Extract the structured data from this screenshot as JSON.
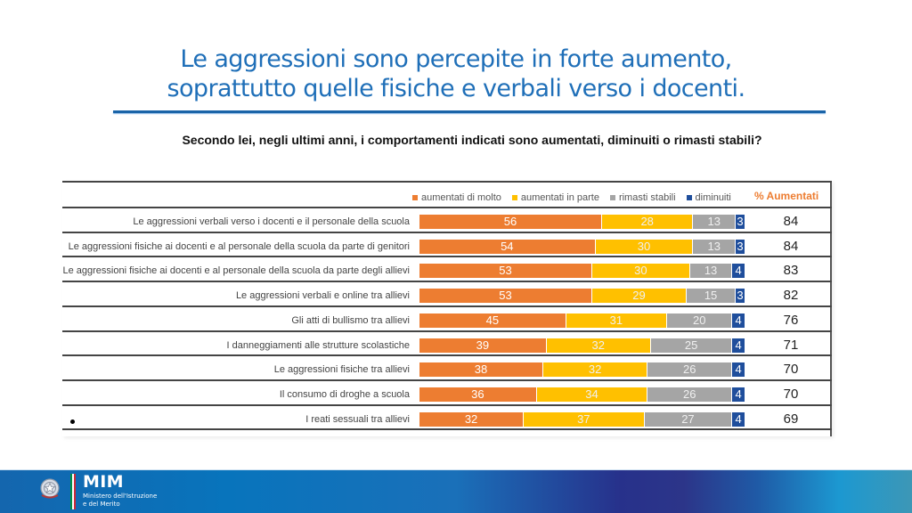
{
  "title": {
    "line1": "Le aggressioni sono percepite in forte aumento,",
    "line2": "soprattutto quelle fisiche e verbali verso i docenti."
  },
  "question": "Secondo lei, negli ultimi anni, i comportamenti indicati sono aumentati, diminuiti o rimasti stabili?",
  "colors": {
    "aumentati_di_molto": "#ed7d31",
    "aumentati_in_parte": "#ffc000",
    "rimasti_stabili": "#a5a5a5",
    "diminuiti": "#1f4e9c",
    "pct_header": "#ed7d31",
    "title": "#1f6fb8"
  },
  "chart_data": {
    "type": "bar",
    "orientation": "horizontal",
    "stacked": true,
    "title": "Secondo lei, negli ultimi anni, i comportamenti indicati sono aumentati, diminuiti o rimasti stabili?",
    "xlabel": "",
    "ylabel": "",
    "xlim": [
      0,
      100
    ],
    "legend_position": "top-right",
    "categories": [
      "Le aggressioni verbali verso i docenti e il personale della scuola",
      "Le aggressioni fisiche ai docenti e al personale della scuola da parte di genitori",
      "Le aggressioni fisiche ai docenti e al personale della scuola da parte degli allievi",
      "Le aggressioni verbali e online tra allievi",
      "Gli atti di bullismo tra allievi",
      "I danneggiamenti alle strutture scolastiche",
      "Le aggressioni fisiche tra allievi",
      "Il consumo di droghe a scuola",
      "I reati sessuali tra allievi"
    ],
    "series": [
      {
        "name": "aumentati di molto",
        "color": "#ed7d31",
        "values": [
          56,
          54,
          53,
          53,
          45,
          39,
          38,
          36,
          32
        ]
      },
      {
        "name": "aumentati in parte",
        "color": "#ffc000",
        "values": [
          28,
          30,
          30,
          29,
          31,
          32,
          32,
          34,
          37
        ]
      },
      {
        "name": "rimasti stabili",
        "color": "#a5a5a5",
        "values": [
          13,
          13,
          13,
          15,
          20,
          25,
          26,
          26,
          27
        ]
      },
      {
        "name": "diminuiti",
        "color": "#1f4e9c",
        "values": [
          3,
          3,
          4,
          3,
          4,
          4,
          4,
          4,
          4
        ]
      }
    ],
    "extra_column": {
      "header": "% Aumentati",
      "values": [
        84,
        84,
        83,
        82,
        76,
        71,
        70,
        70,
        69
      ]
    }
  },
  "footer": {
    "brand": "MIM",
    "line1": "Ministero dell'Istruzione",
    "line2": "e del Merito",
    "flag_colors": [
      "#009246",
      "#ffffff",
      "#ce2b37"
    ]
  }
}
